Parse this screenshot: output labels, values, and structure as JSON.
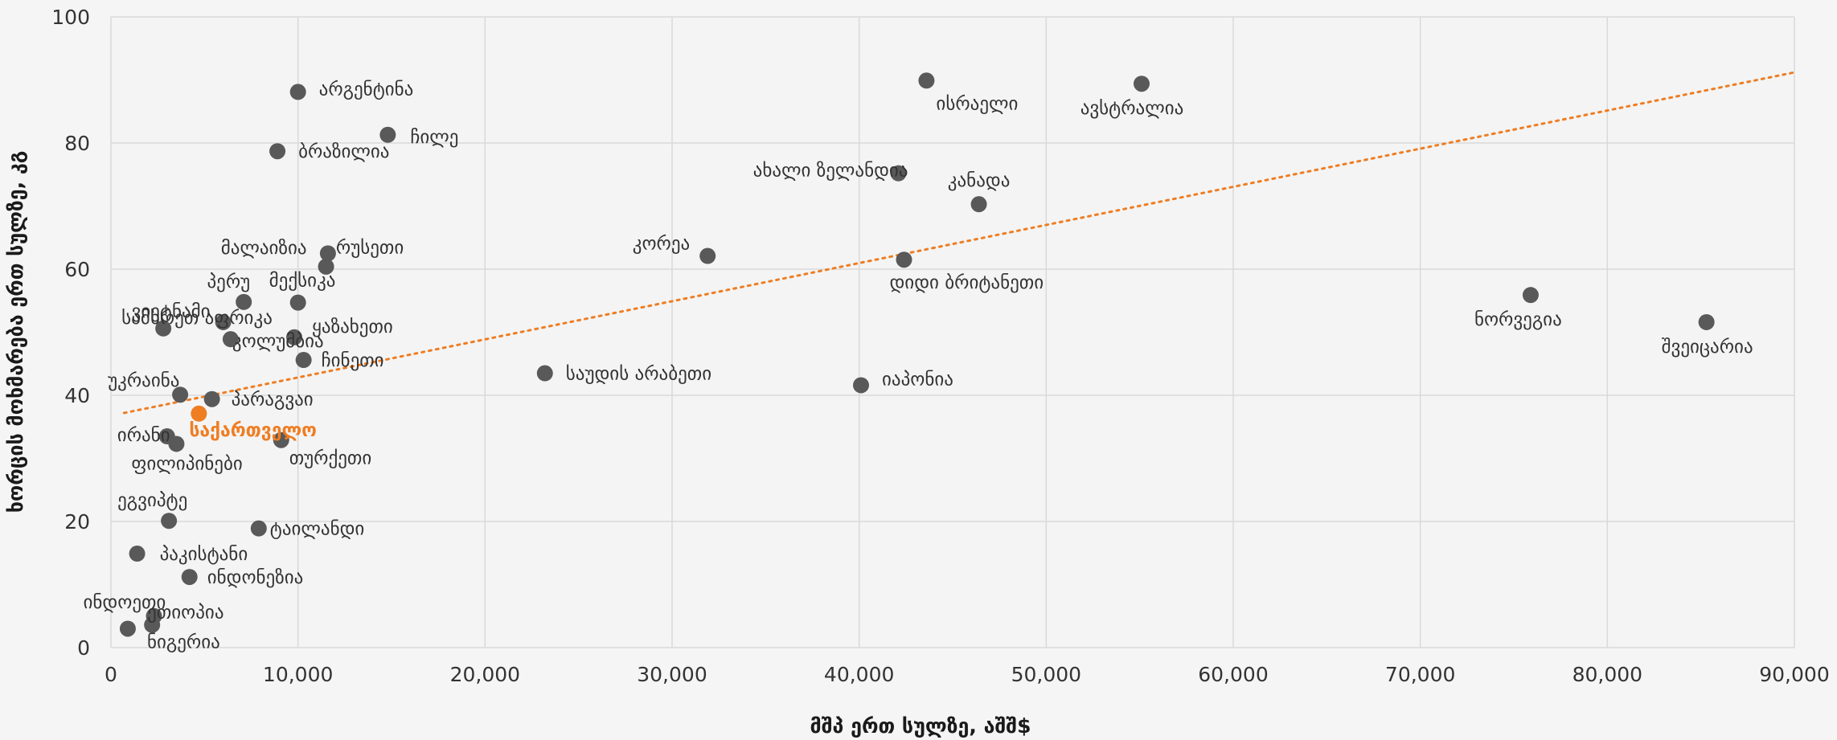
{
  "chart_data": {
    "type": "scatter",
    "xlabel": "მშპ ერთ სულზე, აშშ$",
    "ylabel": "ხორცის მოხმარება ერთ სულზე, კგ",
    "xlim": [
      0,
      90000
    ],
    "ylim": [
      0,
      100
    ],
    "x_ticks": [
      "0",
      "10,000",
      "20,000",
      "30,000",
      "40,000",
      "50,000",
      "60,000",
      "70,000",
      "80,000",
      "90,000"
    ],
    "y_ticks": [
      "0",
      "20",
      "40",
      "60",
      "80",
      "100"
    ],
    "grid": true,
    "colors": {
      "point": "#595959",
      "highlight": "#ef7d22",
      "trendline": "#ef7d22",
      "grid": "#d9d9d9"
    },
    "trendline": {
      "style": "dotted",
      "x": [
        700,
        90000
      ],
      "y": [
        37.2,
        91.2
      ]
    },
    "points": [
      {
        "label": "არგენტინა",
        "x": 10000,
        "y": 88.1
      },
      {
        "label": "ჩილე",
        "x": 14800,
        "y": 81.3
      },
      {
        "label": "ბრაზილია",
        "x": 8900,
        "y": 78.7
      },
      {
        "label": "ისრაელი",
        "x": 43600,
        "y": 89.9
      },
      {
        "label": "ავსტრალია",
        "x": 55100,
        "y": 89.4
      },
      {
        "label": "ახალი ზელანდია",
        "x": 42100,
        "y": 75.2
      },
      {
        "label": "კანადა",
        "x": 46400,
        "y": 70.3
      },
      {
        "label": "რუსეთი",
        "x": 11600,
        "y": 62.5
      },
      {
        "label": "მალაიზია",
        "x": 11500,
        "y": 60.4
      },
      {
        "label": "კორეა",
        "x": 31900,
        "y": 62.1
      },
      {
        "label": "დიდი ბრიტანეთი",
        "x": 42400,
        "y": 61.5
      },
      {
        "label": "პერუ",
        "x": 7100,
        "y": 54.8
      },
      {
        "label": "მექსიკა",
        "x": 10000,
        "y": 54.7
      },
      {
        "label": "ვიეტნამი",
        "x": 6000,
        "y": 51.6
      },
      {
        "label": "სამხრეთ აფრიკა",
        "x": 2800,
        "y": 50.6
      },
      {
        "label": "ყაზახეთი",
        "x": 9800,
        "y": 49.2
      },
      {
        "label": "კოლუმბია",
        "x": 6400,
        "y": 48.9
      },
      {
        "label": "ჩინეთი",
        "x": 10300,
        "y": 45.6
      },
      {
        "label": "ნორვეგია",
        "x": 75900,
        "y": 55.9
      },
      {
        "label": "შვეიცარია",
        "x": 85300,
        "y": 51.6
      },
      {
        "label": "საუდის არაბეთი",
        "x": 23200,
        "y": 43.5
      },
      {
        "label": "იაპონია",
        "x": 40100,
        "y": 41.6
      },
      {
        "label": "უკრაინა",
        "x": 3700,
        "y": 40.1
      },
      {
        "label": "პარაგვაი",
        "x": 5400,
        "y": 39.4
      },
      {
        "label": "საქართველო",
        "x": 4700,
        "y": 37.1,
        "highlight": true
      },
      {
        "label": "ირანი",
        "x": 3000,
        "y": 33.5
      },
      {
        "label": "ფილიპინები",
        "x": 3500,
        "y": 32.3
      },
      {
        "label": "თურქეთი",
        "x": 9100,
        "y": 32.9
      },
      {
        "label": "ეგვიპტე",
        "x": 3100,
        "y": 20.1
      },
      {
        "label": "ტაილანდი",
        "x": 7900,
        "y": 18.9
      },
      {
        "label": "პაკისტანი",
        "x": 1400,
        "y": 14.9
      },
      {
        "label": "ინდონეზია",
        "x": 4200,
        "y": 11.2
      },
      {
        "label": "ინდოეთი",
        "x": 2300,
        "y": 5.0
      },
      {
        "label": "ეთიოპია",
        "x": 2200,
        "y": 3.6
      },
      {
        "label": "ნიგერია",
        "x": 900,
        "y": 3.0
      }
    ]
  }
}
